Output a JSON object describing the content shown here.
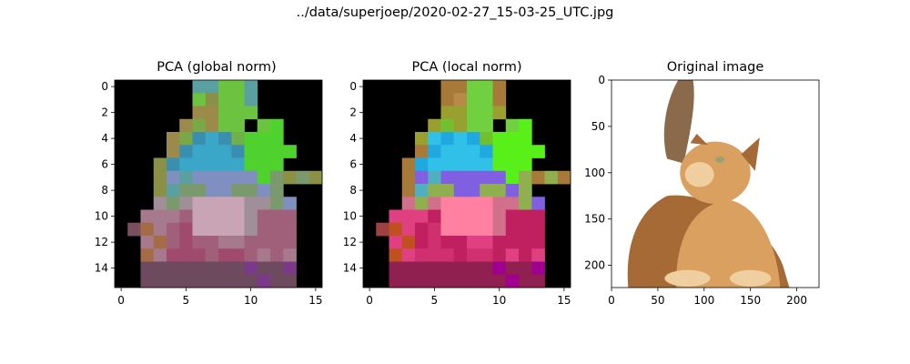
{
  "figure": {
    "suptitle": "../data/superjoep/2020-02-27_15-03-25_UTC.jpg"
  },
  "chart_data": [
    {
      "type": "heatmap",
      "title": "PCA (global norm)",
      "xticks": [
        0,
        5,
        10,
        15
      ],
      "yticks": [
        0,
        2,
        4,
        6,
        8,
        10,
        12,
        14
      ],
      "xlim": [
        -0.5,
        15.5
      ],
      "ylim": [
        15.5,
        -0.5
      ],
      "grid": false,
      "background": "#000000",
      "palette": [
        "#000000",
        "#8a9045",
        "#9b8a4a",
        "#7aa846",
        "#6fb04a",
        "#3a8fb0",
        "#3aa7c8",
        "#4fd12e",
        "#6cc33f",
        "#5aa0a0",
        "#7e8fc0",
        "#7a9a6e",
        "#a08f98",
        "#c8a4b4",
        "#a67a8c",
        "#a0607a",
        "#6e4a5e",
        "#a04a6e",
        "#7a5060",
        "#a46c44",
        "#7a3a88"
      ],
      "rows": [
        "0000009988900000",
        "0000008188900000",
        "0000002288800000",
        "0000023288087000",
        "0000235654777000",
        "0000256665777700",
        "0001566666777000",
        "0001a9aaaaa7b1b1",
        "00019bbaabbab000",
        "000cbcddddccba00",
        "00eeefddddcfff00",
        "0ijefhddddcfff00",
        "00ejfhffeeffff00",
        "00jehhhfhhfefe00",
        "00ggggggggkggk00",
        "00gggggggggkgg00"
      ]
    },
    {
      "type": "heatmap",
      "title": "PCA (local norm)",
      "xticks": [
        0,
        5,
        10,
        15
      ],
      "yticks": [
        0,
        2,
        4,
        6,
        8,
        10,
        12,
        14
      ],
      "xlim": [
        -0.5,
        15.5
      ],
      "ylim": [
        15.5,
        -0.5
      ],
      "grid": false,
      "background": "#000000",
      "palette": [
        "#000000",
        "#a87a3a",
        "#b88a4a",
        "#9aa030",
        "#70c030",
        "#20a8e0",
        "#30c0e8",
        "#58f018",
        "#70d040",
        "#50b0c0",
        "#8060e0",
        "#90b050",
        "#d0708a",
        "#ff80a0",
        "#e04080",
        "#c02060",
        "#902050",
        "#d03070",
        "#a04040",
        "#c05020",
        "#a00090"
      ],
      "rows": [
        "0000001188100000",
        "0000001288100000",
        "0000003388300000",
        "0000034388087000",
        "0000365654777000",
        "0000156665777700",
        "0001566666777000",
        "0001a9aaaaa7b1b1",
        "00019bbaabbab000",
        "000cbcddddccba00",
        "00eeefddddcfff00",
        "0ijefhddddcfff00",
        "00ejfhffeeffff00",
        "00jehhhfhhfefe00",
        "00ggggggggkggk00",
        "00gggggggggkgg00"
      ]
    },
    {
      "type": "image",
      "title": "Original image",
      "xticks": [
        0,
        50,
        100,
        150,
        200
      ],
      "yticks": [
        0,
        50,
        100,
        150,
        200
      ],
      "xlim": [
        0,
        224
      ],
      "ylim": [
        224,
        0
      ],
      "subject": "photo of an orange tabby cat looking up, tail raised, on white background",
      "colors": {
        "fur": "#d9a060",
        "fur_dark": "#a56a35",
        "fur_light": "#efcfa0",
        "tail": "#8a6a4a",
        "eye": "#9aa070"
      }
    }
  ]
}
